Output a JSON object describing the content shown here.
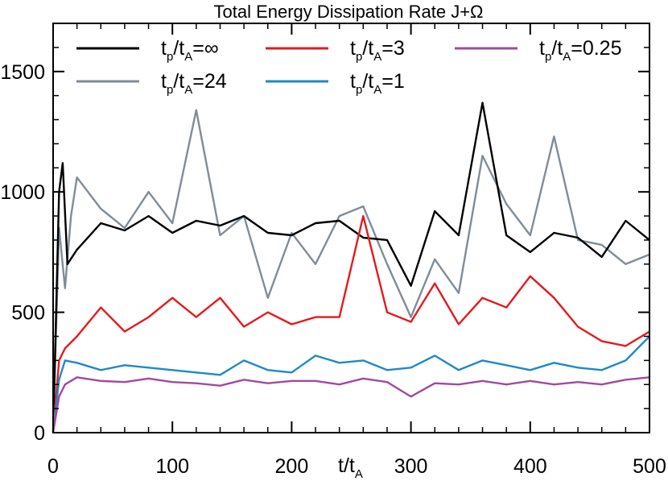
{
  "chart_data": {
    "type": "line",
    "title": "Total Energy Dissipation Rate J+Ω",
    "xlabel": {
      "base": "t/t",
      "sub": "A"
    },
    "ylabel": "",
    "xlim": [
      0,
      500
    ],
    "ylim": [
      0,
      1700
    ],
    "xticks": [
      0,
      100,
      200,
      300,
      400,
      500
    ],
    "yticks": [
      0,
      500,
      1000,
      1500
    ],
    "grid": false,
    "legend_position": "top",
    "series": [
      {
        "name": "t_p/t_A=∞",
        "label_parts": [
          "t",
          "p",
          "/t",
          "A",
          "=∞"
        ],
        "color": "#000000",
        "x": [
          0,
          5,
          8,
          12,
          20,
          40,
          60,
          80,
          100,
          120,
          140,
          160,
          180,
          200,
          220,
          240,
          260,
          280,
          300,
          320,
          340,
          360,
          380,
          400,
          420,
          440,
          460,
          480,
          500
        ],
        "y": [
          0,
          1000,
          1120,
          700,
          760,
          870,
          840,
          900,
          830,
          880,
          860,
          900,
          830,
          820,
          870,
          880,
          810,
          800,
          610,
          920,
          820,
          1370,
          820,
          750,
          830,
          810,
          730,
          880,
          800
        ]
      },
      {
        "name": "t_p/t_A=24",
        "label_parts": [
          "t",
          "p",
          "/t",
          "A",
          "=24"
        ],
        "color": "#7f8c99",
        "x": [
          0,
          5,
          10,
          15,
          20,
          40,
          60,
          80,
          100,
          120,
          140,
          160,
          180,
          200,
          220,
          240,
          260,
          280,
          300,
          320,
          340,
          360,
          380,
          400,
          420,
          440,
          460,
          480,
          500
        ],
        "y": [
          0,
          850,
          600,
          900,
          1060,
          930,
          850,
          1000,
          870,
          1340,
          820,
          900,
          560,
          830,
          700,
          900,
          940,
          700,
          480,
          720,
          580,
          1150,
          950,
          820,
          1230,
          800,
          780,
          700,
          740
        ]
      },
      {
        "name": "t_p/t_A=3",
        "label_parts": [
          "t",
          "p",
          "/t",
          "A",
          "=3"
        ],
        "color": "#e41a1c",
        "x": [
          0,
          5,
          10,
          20,
          40,
          60,
          80,
          100,
          120,
          140,
          160,
          180,
          200,
          220,
          240,
          260,
          280,
          300,
          320,
          340,
          360,
          380,
          400,
          420,
          440,
          460,
          480,
          500
        ],
        "y": [
          0,
          300,
          350,
          400,
          520,
          420,
          480,
          560,
          480,
          560,
          440,
          500,
          450,
          480,
          480,
          900,
          500,
          460,
          620,
          450,
          560,
          520,
          650,
          560,
          440,
          380,
          360,
          420
        ]
      },
      {
        "name": "t_p/t_A=1",
        "label_parts": [
          "t",
          "p",
          "/t",
          "A",
          "=1"
        ],
        "color": "#1d8ac9",
        "x": [
          0,
          5,
          10,
          20,
          40,
          60,
          80,
          100,
          120,
          140,
          160,
          180,
          200,
          220,
          240,
          260,
          280,
          300,
          320,
          340,
          360,
          380,
          400,
          420,
          440,
          460,
          480,
          500
        ],
        "y": [
          0,
          220,
          300,
          290,
          260,
          280,
          270,
          260,
          250,
          240,
          300,
          260,
          250,
          320,
          290,
          300,
          260,
          270,
          320,
          260,
          300,
          280,
          260,
          290,
          270,
          260,
          300,
          400
        ]
      },
      {
        "name": "t_p/t_A=0.25",
        "label_parts": [
          "t",
          "p",
          "/t",
          "A",
          "=0.25"
        ],
        "color": "#a14aa0",
        "x": [
          0,
          5,
          10,
          20,
          40,
          60,
          80,
          100,
          120,
          140,
          160,
          180,
          200,
          220,
          240,
          260,
          280,
          300,
          320,
          340,
          360,
          380,
          400,
          420,
          440,
          460,
          480,
          500
        ],
        "y": [
          0,
          150,
          200,
          230,
          215,
          210,
          225,
          210,
          205,
          195,
          220,
          205,
          215,
          215,
          200,
          225,
          210,
          150,
          205,
          200,
          215,
          200,
          215,
          200,
          210,
          200,
          220,
          230
        ]
      }
    ]
  }
}
